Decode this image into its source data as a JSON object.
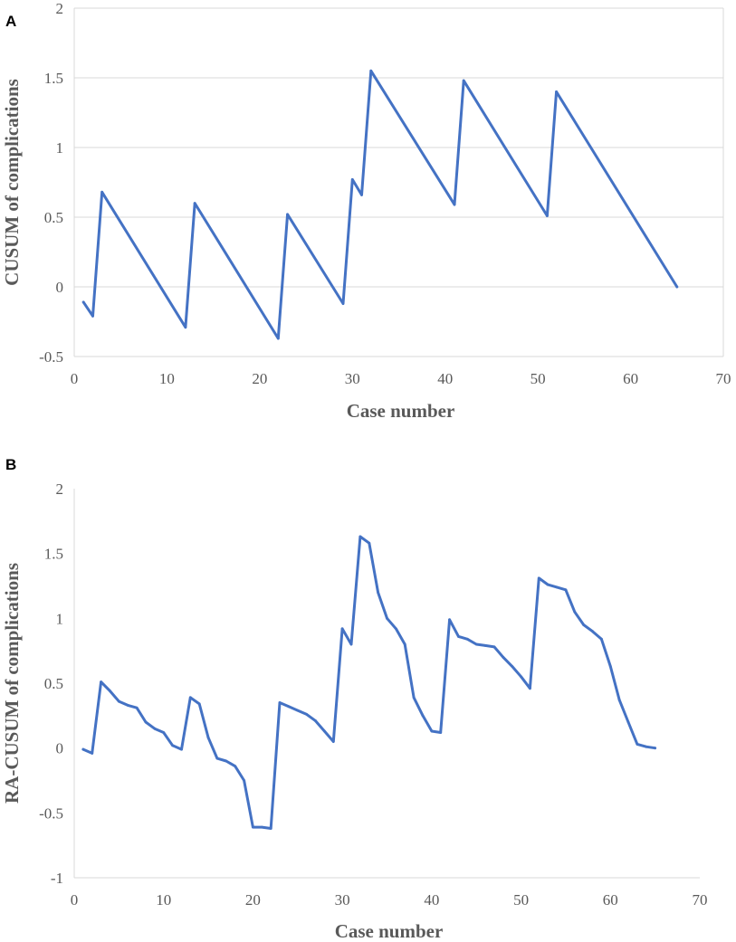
{
  "chart_data": [
    {
      "type": "line",
      "panel": "A",
      "xlabel": "Case number",
      "ylabel": "CUSUM of complications",
      "xlim": [
        0,
        70
      ],
      "ylim": [
        -0.5,
        2
      ],
      "xticks": [
        0,
        10,
        20,
        30,
        40,
        50,
        60,
        70
      ],
      "yticks": [
        -0.5,
        0,
        0.5,
        1,
        1.5,
        2
      ],
      "ytick_labels": [
        "-0.5",
        "0",
        "0.5",
        "1",
        "1.5",
        "2"
      ],
      "grid": true,
      "series_color": "#4472c4",
      "x": [
        1,
        2,
        3,
        12,
        13,
        22,
        23,
        29,
        30,
        31,
        32,
        41,
        42,
        51,
        52,
        65
      ],
      "y": [
        -0.11,
        -0.21,
        0.68,
        -0.29,
        0.6,
        -0.37,
        0.52,
        -0.12,
        0.77,
        0.66,
        1.55,
        0.59,
        1.48,
        0.51,
        1.4,
        0.0
      ]
    },
    {
      "type": "line",
      "panel": "B",
      "xlabel": "Case number",
      "ylabel": "RA-CUSUM of complications",
      "xlim": [
        0,
        70
      ],
      "ylim": [
        -1,
        2
      ],
      "xticks": [
        0,
        10,
        20,
        30,
        40,
        50,
        60,
        70
      ],
      "yticks": [
        -1,
        -0.5,
        0,
        0.5,
        1,
        1.5,
        2
      ],
      "ytick_labels": [
        "-1",
        "-0.5",
        "0",
        "0.5",
        "1",
        "1.5",
        "2"
      ],
      "grid": false,
      "series_color": "#4472c4",
      "x": [
        1,
        2,
        3,
        4,
        5,
        6,
        7,
        8,
        9,
        10,
        11,
        12,
        13,
        14,
        15,
        16,
        17,
        18,
        19,
        20,
        21,
        22,
        23,
        24,
        25,
        26,
        27,
        28,
        29,
        30,
        31,
        32,
        33,
        34,
        35,
        36,
        37,
        38,
        39,
        40,
        41,
        42,
        43,
        44,
        45,
        46,
        47,
        48,
        49,
        50,
        51,
        52,
        53,
        54,
        55,
        56,
        57,
        58,
        59,
        60,
        61,
        62,
        63,
        64,
        65
      ],
      "y": [
        -0.01,
        -0.04,
        0.51,
        0.44,
        0.36,
        0.33,
        0.31,
        0.2,
        0.15,
        0.12,
        0.02,
        -0.01,
        0.39,
        0.34,
        0.08,
        -0.08,
        -0.1,
        -0.14,
        -0.25,
        -0.61,
        -0.61,
        -0.62,
        0.35,
        0.32,
        0.29,
        0.26,
        0.21,
        0.13,
        0.05,
        0.92,
        0.8,
        1.63,
        1.58,
        1.2,
        1.0,
        0.92,
        0.8,
        0.39,
        0.25,
        0.13,
        0.12,
        0.99,
        0.86,
        0.84,
        0.8,
        0.79,
        0.78,
        0.7,
        0.63,
        0.55,
        0.46,
        1.31,
        1.26,
        1.24,
        1.22,
        1.05,
        0.95,
        0.9,
        0.84,
        0.63,
        0.37,
        0.2,
        0.03,
        0.01,
        0.0
      ]
    }
  ],
  "panels": {
    "a": {
      "letter": "A"
    },
    "b": {
      "letter": "B"
    }
  }
}
